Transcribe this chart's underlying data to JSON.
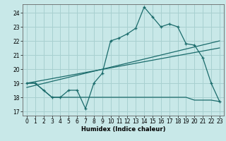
{
  "xlabel": "Humidex (Indice chaleur)",
  "xlim": [
    -0.5,
    23.5
  ],
  "ylim": [
    16.7,
    24.6
  ],
  "xticks": [
    0,
    1,
    2,
    3,
    4,
    5,
    6,
    7,
    8,
    9,
    10,
    11,
    12,
    13,
    14,
    15,
    16,
    17,
    18,
    19,
    20,
    21,
    22,
    23
  ],
  "yticks": [
    17,
    18,
    19,
    20,
    21,
    22,
    23,
    24
  ],
  "bg_color": "#c8e8e8",
  "grid_color": "#a8d0d0",
  "line_color": "#1a6b6b",
  "main_line_x": [
    0,
    1,
    2,
    3,
    4,
    5,
    6,
    7,
    8,
    9,
    10,
    11,
    12,
    13,
    14,
    15,
    16,
    17,
    18,
    19,
    20,
    21,
    22,
    23
  ],
  "main_line_y": [
    19,
    19,
    18.5,
    18,
    18,
    18.5,
    18.5,
    17.2,
    19,
    19.7,
    22,
    22.2,
    22.5,
    22.9,
    24.4,
    23.7,
    23.0,
    23.2,
    23.0,
    21.8,
    21.7,
    20.8,
    19.0,
    17.7
  ],
  "flat_line_x": [
    0,
    1,
    2,
    3,
    4,
    5,
    6,
    7,
    8,
    9,
    10,
    11,
    12,
    13,
    14,
    15,
    16,
    17,
    18,
    19,
    20,
    21,
    22,
    23
  ],
  "flat_line_y": [
    19.0,
    19.0,
    18.5,
    18.0,
    18.0,
    18.0,
    18.0,
    18.0,
    18.0,
    18.0,
    18.0,
    18.0,
    18.0,
    18.0,
    18.0,
    18.0,
    18.0,
    18.0,
    18.0,
    18.0,
    17.8,
    17.8,
    17.8,
    17.7
  ],
  "trend1_x": [
    0,
    23
  ],
  "trend1_y": [
    19.0,
    21.5
  ],
  "trend2_x": [
    0,
    23
  ],
  "trend2_y": [
    18.7,
    22.0
  ]
}
